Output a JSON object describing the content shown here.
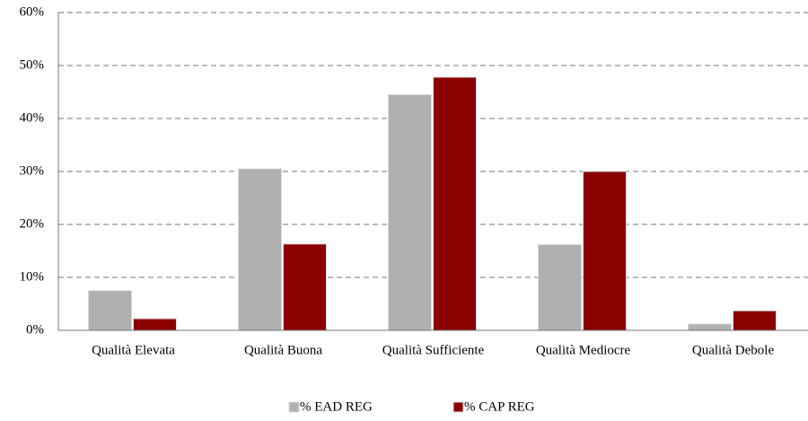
{
  "chart_data": {
    "type": "bar",
    "categories": [
      "Qualità Elevata",
      "Qualità Buona",
      "Qualità Sufficiente",
      "Qualità Mediocre",
      "Qualità Debole"
    ],
    "series": [
      {
        "name": "% EAD REG",
        "color": "#b0b0b0",
        "values": [
          7.5,
          30.5,
          44.5,
          16.2,
          1.2
        ]
      },
      {
        "name": "% CAP REG",
        "color": "#8b0000",
        "values": [
          2.2,
          16.3,
          47.8,
          30.0,
          3.7
        ]
      }
    ],
    "ylim": [
      0,
      60
    ],
    "yticks": [
      {
        "value": 0,
        "label": "0%"
      },
      {
        "value": 10,
        "label": "10%"
      },
      {
        "value": 20,
        "label": "20%"
      },
      {
        "value": 30,
        "label": "30%"
      },
      {
        "value": 40,
        "label": "40%"
      },
      {
        "value": 50,
        "label": "50%"
      },
      {
        "value": 60,
        "label": "60%"
      }
    ],
    "grid": true,
    "legend": "bottom"
  }
}
